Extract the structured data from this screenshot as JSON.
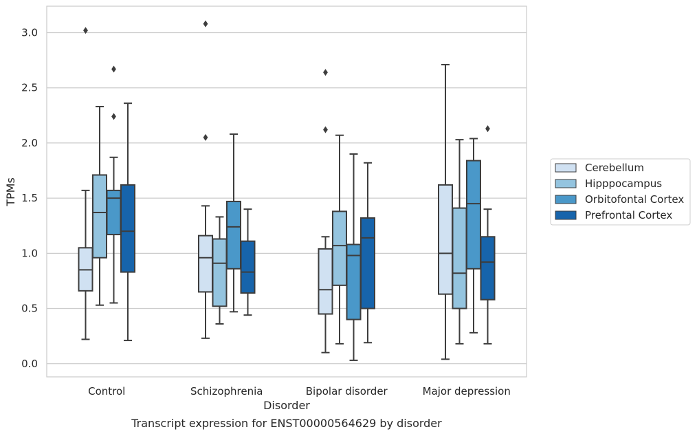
{
  "caption": "Transcript expression for ENST00000564629 by disorder",
  "chart_data": {
    "type": "box",
    "xlabel": "Disorder",
    "ylabel": "TPMs",
    "ylim": [
      -0.12,
      3.24
    ],
    "yticks": [
      "0.0",
      "0.5",
      "1.0",
      "1.5",
      "2.0",
      "2.5",
      "3.0"
    ],
    "grid": true,
    "legend_position": "right",
    "categories": [
      "Control",
      "Schizophrenia",
      "Bipolar disorder",
      "Major depression"
    ],
    "series": [
      {
        "name": "Cerebellum",
        "color": "#d0e1f2",
        "boxes": [
          {
            "whislo": 0.22,
            "q1": 0.66,
            "med": 0.85,
            "q3": 1.05,
            "whishi": 1.57,
            "fliers": [
              3.02
            ]
          },
          {
            "whislo": 0.23,
            "q1": 0.65,
            "med": 0.96,
            "q3": 1.16,
            "whishi": 1.43,
            "fliers": [
              3.08,
              2.05
            ]
          },
          {
            "whislo": 0.1,
            "q1": 0.45,
            "med": 0.67,
            "q3": 1.04,
            "whishi": 1.15,
            "fliers": [
              2.64,
              2.12
            ]
          },
          {
            "whislo": 0.04,
            "q1": 0.63,
            "med": 1.0,
            "q3": 1.62,
            "whishi": 2.71,
            "fliers": []
          }
        ]
      },
      {
        "name": "Hipppocampus",
        "color": "#94c4df",
        "boxes": [
          {
            "whislo": 0.53,
            "q1": 0.96,
            "med": 1.37,
            "q3": 1.71,
            "whishi": 2.33,
            "fliers": []
          },
          {
            "whislo": 0.36,
            "q1": 0.52,
            "med": 0.91,
            "q3": 1.13,
            "whishi": 1.33,
            "fliers": []
          },
          {
            "whislo": 0.18,
            "q1": 0.71,
            "med": 1.07,
            "q3": 1.38,
            "whishi": 2.07,
            "fliers": []
          },
          {
            "whislo": 0.18,
            "q1": 0.5,
            "med": 0.82,
            "q3": 1.41,
            "whishi": 2.03,
            "fliers": []
          }
        ]
      },
      {
        "name": "Orbitofontal Cortex",
        "color": "#4a98c9",
        "boxes": [
          {
            "whislo": 0.55,
            "q1": 1.17,
            "med": 1.5,
            "q3": 1.57,
            "whishi": 1.87,
            "fliers": [
              2.67,
              2.24
            ]
          },
          {
            "whislo": 0.47,
            "q1": 0.86,
            "med": 1.24,
            "q3": 1.47,
            "whishi": 2.08,
            "fliers": []
          },
          {
            "whislo": 0.03,
            "q1": 0.4,
            "med": 0.98,
            "q3": 1.08,
            "whishi": 1.9,
            "fliers": []
          },
          {
            "whislo": 0.28,
            "q1": 0.86,
            "med": 1.45,
            "q3": 1.84,
            "whishi": 2.04,
            "fliers": []
          }
        ]
      },
      {
        "name": "Prefrontal Cortex",
        "color": "#1764ab",
        "boxes": [
          {
            "whislo": 0.21,
            "q1": 0.83,
            "med": 1.2,
            "q3": 1.62,
            "whishi": 2.36,
            "fliers": []
          },
          {
            "whislo": 0.44,
            "q1": 0.64,
            "med": 0.83,
            "q3": 1.11,
            "whishi": 1.4,
            "fliers": []
          },
          {
            "whislo": 0.19,
            "q1": 0.5,
            "med": 1.14,
            "q3": 1.32,
            "whishi": 1.82,
            "fliers": []
          },
          {
            "whislo": 0.18,
            "q1": 0.58,
            "med": 0.92,
            "q3": 1.15,
            "whishi": 1.4,
            "fliers": [
              2.13
            ]
          }
        ]
      }
    ]
  }
}
